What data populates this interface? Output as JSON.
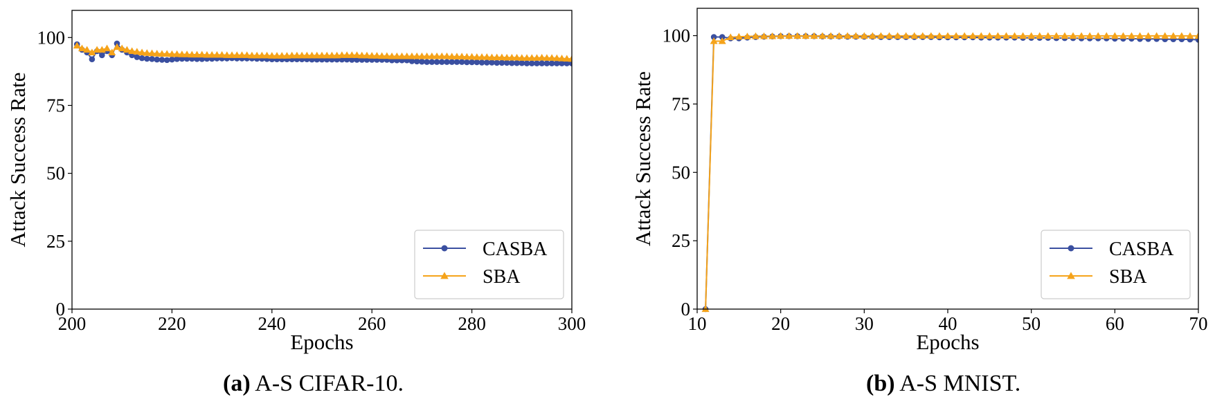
{
  "colors": {
    "casba": "#3a4fa0",
    "sba": "#f5a31a",
    "frame": "#000000"
  },
  "chart_data": [
    {
      "type": "line",
      "caption_tag": "(a)",
      "caption_text": "A-S CIFAR-10.",
      "xlabel": "Epochs",
      "ylabel": "Attack Success Rate",
      "xlim": [
        200,
        300
      ],
      "ylim": [
        0,
        110
      ],
      "xticks": [
        200,
        220,
        240,
        260,
        280,
        300
      ],
      "yticks": [
        0,
        25,
        50,
        75,
        100
      ],
      "legend_position": "lower-right",
      "series": [
        {
          "name": "CASBA",
          "marker": "circle",
          "x_start": 201,
          "x_step": 1,
          "values": [
            97.5,
            95.5,
            94.5,
            92,
            95,
            93.5,
            95,
            93.5,
            97.8,
            95.5,
            94.5,
            93.5,
            92.8,
            92.4,
            92.2,
            92.1,
            91.9,
            91.8,
            91.7,
            91.9,
            92.1,
            92.2,
            92.2,
            92.2,
            92.1,
            92.1,
            92.2,
            92.2,
            92.3,
            92.3,
            92.3,
            92.4,
            92.3,
            92.3,
            92.3,
            92.3,
            92.2,
            92.2,
            92.1,
            92,
            92,
            92,
            92,
            92,
            92,
            92,
            92,
            91.9,
            91.9,
            91.9,
            91.9,
            91.9,
            91.9,
            91.9,
            91.9,
            91.8,
            91.8,
            91.8,
            91.8,
            91.8,
            91.8,
            91.8,
            91.8,
            91.6,
            91.6,
            91.6,
            91.6,
            91.3,
            91.2,
            91.1,
            91,
            91,
            91,
            91,
            91,
            91,
            91,
            91,
            90.9,
            90.9,
            90.9,
            90.8,
            90.8,
            90.8,
            90.7,
            90.7,
            90.7,
            90.6,
            90.6,
            90.6,
            90.5,
            90.5,
            90.5,
            90.5,
            90.5,
            90.5,
            90.5,
            90.5,
            90.5,
            90.5
          ]
        },
        {
          "name": "SBA",
          "marker": "triangle",
          "x_start": 201,
          "x_step": 1,
          "values": [
            97,
            96,
            95.5,
            94.5,
            95.5,
            95.5,
            96,
            94.5,
            96.5,
            96,
            95.5,
            95,
            94.8,
            94.5,
            94.3,
            94.2,
            94.1,
            94,
            94,
            93.9,
            93.9,
            93.8,
            93.8,
            93.7,
            93.7,
            93.7,
            93.6,
            93.6,
            93.6,
            93.6,
            93.5,
            93.5,
            93.5,
            93.5,
            93.5,
            93.4,
            93.4,
            93.4,
            93.4,
            93.3,
            93.3,
            93.3,
            93.3,
            93.4,
            93.4,
            93.4,
            93.4,
            93.4,
            93.4,
            93.4,
            93.4,
            93.4,
            93.4,
            93.5,
            93.5,
            93.5,
            93.5,
            93.4,
            93.4,
            93.3,
            93.3,
            93.2,
            93.2,
            93.1,
            93.1,
            93.1,
            93.1,
            93.1,
            93.1,
            93.1,
            93.1,
            93.1,
            93.1,
            93.1,
            93.1,
            93,
            93,
            93,
            92.9,
            92.9,
            92.8,
            92.8,
            92.8,
            92.7,
            92.7,
            92.7,
            92.6,
            92.6,
            92.6,
            92.5,
            92.5,
            92.5,
            92.5,
            92.6,
            92.5,
            92.5,
            92.4,
            92.3,
            92.2,
            92.1
          ]
        }
      ]
    },
    {
      "type": "line",
      "caption_tag": "(b)",
      "caption_text": "A-S MNIST.",
      "xlabel": "Epochs",
      "ylabel": "Attack Success Rate",
      "xlim": [
        10,
        70
      ],
      "ylim": [
        0,
        110
      ],
      "xticks": [
        10,
        20,
        30,
        40,
        50,
        60,
        70
      ],
      "yticks": [
        0,
        25,
        50,
        75,
        100
      ],
      "legend_position": "lower-right",
      "series": [
        {
          "name": "CASBA",
          "marker": "circle",
          "x_start": 11,
          "x_step": 1,
          "values": [
            0,
            99.5,
            99.5,
            99,
            99,
            99.3,
            99.5,
            99.6,
            99.7,
            99.8,
            99.8,
            99.8,
            99.8,
            99.8,
            99.7,
            99.7,
            99.7,
            99.6,
            99.6,
            99.6,
            99.6,
            99.5,
            99.5,
            99.5,
            99.5,
            99.5,
            99.5,
            99.5,
            99.4,
            99.4,
            99.4,
            99.4,
            99.4,
            99.3,
            99.3,
            99.3,
            99.3,
            99.3,
            99.2,
            99.2,
            99.2,
            99.2,
            99.1,
            99.1,
            99.1,
            99,
            99,
            99,
            99,
            98.9,
            98.9,
            98.9,
            98.8,
            98.8,
            98.8,
            98.7,
            98.7,
            98.7,
            98.6,
            98.5
          ]
        },
        {
          "name": "SBA",
          "marker": "triangle",
          "x_start": 11,
          "x_step": 1,
          "values": [
            0,
            98,
            98,
            99.4,
            99.6,
            99.7,
            99.8,
            99.8,
            99.8,
            99.9,
            99.9,
            99.9,
            99.9,
            99.9,
            99.9,
            99.9,
            99.9,
            99.9,
            99.9,
            99.9,
            99.9,
            99.9,
            99.9,
            99.9,
            99.9,
            99.9,
            99.9,
            99.9,
            99.9,
            99.9,
            99.9,
            99.9,
            99.9,
            99.9,
            99.9,
            99.9,
            99.9,
            99.9,
            99.9,
            99.9,
            99.9,
            99.9,
            99.9,
            99.9,
            99.9,
            99.9,
            99.9,
            99.9,
            99.9,
            99.9,
            99.9,
            99.9,
            99.9,
            99.9,
            99.9,
            99.9,
            99.9,
            99.9,
            99.9,
            99.9
          ]
        }
      ]
    }
  ]
}
